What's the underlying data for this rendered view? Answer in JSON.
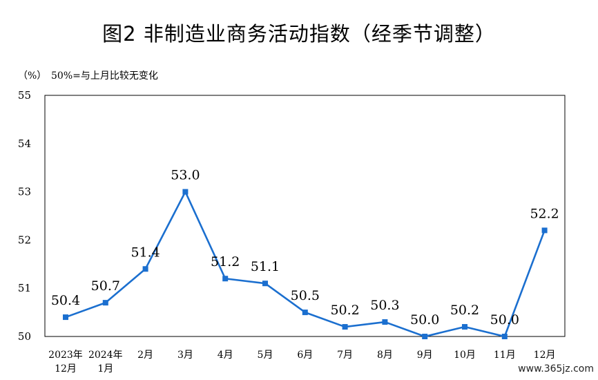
{
  "title": "图2  非制造业商务活动指数（经季节调整）",
  "unit_label": "（%）",
  "note": "50%=与上月比较无变化",
  "watermark": "www.365jz.com",
  "colors": {
    "line": "#1b6fcf",
    "axis": "#000000"
  },
  "chart_data": {
    "type": "line",
    "title": "图2  非制造业商务活动指数（经季节调整）",
    "xlabel": "",
    "ylabel": "（%）",
    "ylim": [
      50,
      55
    ],
    "yticks": [
      50,
      51,
      52,
      53,
      54,
      55
    ],
    "grid": false,
    "legend": "none",
    "categories": [
      [
        "2023年",
        "12月"
      ],
      [
        "2024年",
        "1月"
      ],
      [
        "2月"
      ],
      [
        "3月"
      ],
      [
        "4月"
      ],
      [
        "5月"
      ],
      [
        "6月"
      ],
      [
        "7月"
      ],
      [
        "8月"
      ],
      [
        "9月"
      ],
      [
        "10月"
      ],
      [
        "11月"
      ],
      [
        "12月"
      ]
    ],
    "series": [
      {
        "values": [
          50.4,
          50.7,
          51.4,
          53.0,
          51.2,
          51.1,
          50.5,
          50.2,
          50.3,
          50.0,
          50.2,
          50.0,
          52.2
        ],
        "labels": [
          "50.4",
          "50.7",
          "51.4",
          "53.0",
          "51.2",
          "51.1",
          "50.5",
          "50.2",
          "50.3",
          "50.0",
          "50.2",
          "50.0",
          "52.2"
        ]
      }
    ]
  }
}
